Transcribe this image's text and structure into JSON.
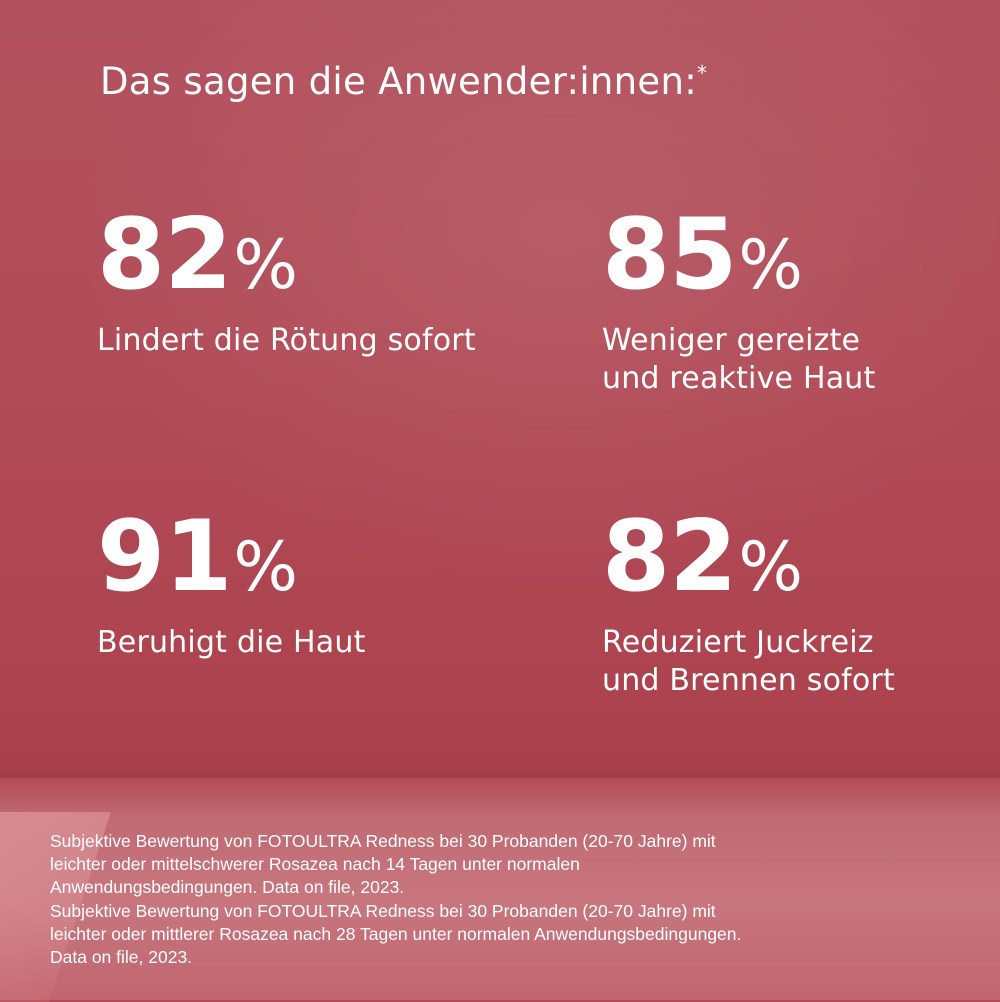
{
  "headline": "Das sagen die Anwender:innen:",
  "headline_marker": "*",
  "stats": [
    {
      "number": "82",
      "unit": "%",
      "label": "Lindert die Rötung sofort"
    },
    {
      "number": "85",
      "unit": "%",
      "label": "Weniger gereizte\nund reaktive Haut"
    },
    {
      "number": "91",
      "unit": "%",
      "label": "Beruhigt die Haut"
    },
    {
      "number": "82",
      "unit": "%",
      "label": "Reduziert Juckreiz\nund Brennen sofort"
    }
  ],
  "footnotes": [
    "Subjektive Bewertung von FOTOULTRA Redness bei 30 Probanden (20-70 Jahre) mit\nleichter oder mittelschwerer Rosazea nach 14 Tagen unter normalen\nAnwendungsbedingungen. Data on file, 2023.",
    "Subjektive Bewertung von FOTOULTRA Redness bei 30 Probanden (20-70 Jahre) mit\nleichter oder mittlerer Rosazea nach 28 Tagen unter normalen Anwendungsbedingungen.\nData on file, 2023."
  ],
  "colors": {
    "background": "#b14c58",
    "floor": "#c8767e",
    "text": "#ffffff"
  }
}
